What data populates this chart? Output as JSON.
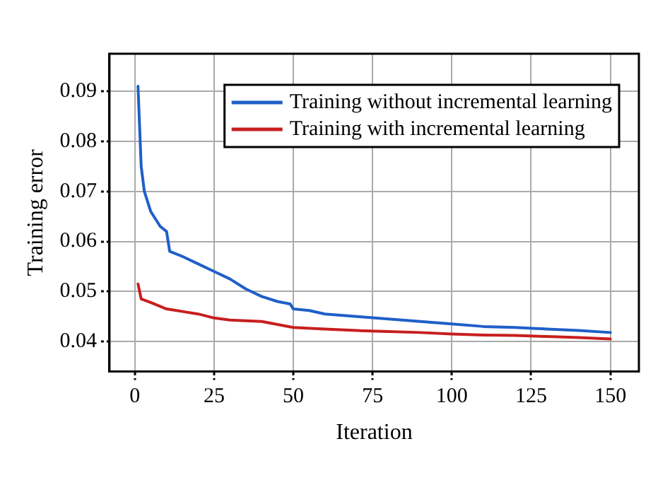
{
  "chart_data": {
    "type": "line",
    "xlabel": "Iteration",
    "ylabel": "Training error",
    "xlim": [
      -8,
      159
    ],
    "xticks": [
      0,
      25,
      50,
      75,
      100,
      125,
      150
    ],
    "ylim": [
      0.034,
      0.0975
    ],
    "yticks": [
      0.04,
      0.05,
      0.06,
      0.07,
      0.08,
      0.09
    ],
    "grid": true,
    "legend": "top right",
    "marker": "none",
    "line_style": "solid",
    "series": [
      {
        "name": "Training without incremental learning",
        "color": "#1f5fc8",
        "x": [
          1,
          2,
          3,
          5,
          8,
          10,
          11,
          15,
          20,
          25,
          30,
          35,
          40,
          45,
          49,
          50,
          55,
          60,
          70,
          80,
          90,
          100,
          110,
          120,
          130,
          140,
          150
        ],
        "values": [
          0.091,
          0.075,
          0.07,
          0.066,
          0.063,
          0.062,
          0.058,
          0.057,
          0.0555,
          0.054,
          0.0525,
          0.0505,
          0.049,
          0.048,
          0.0475,
          0.0465,
          0.0462,
          0.0455,
          0.045,
          0.0445,
          0.044,
          0.0435,
          0.043,
          0.0428,
          0.0425,
          0.0422,
          0.0418
        ]
      },
      {
        "name": "Training with incremental learning",
        "color": "#c81e1e",
        "x": [
          1,
          2,
          5,
          10,
          15,
          20,
          25,
          30,
          40,
          50,
          60,
          70,
          80,
          90,
          100,
          110,
          120,
          130,
          140,
          150
        ],
        "values": [
          0.0515,
          0.0485,
          0.0478,
          0.0465,
          0.046,
          0.0455,
          0.0447,
          0.0443,
          0.044,
          0.0428,
          0.0425,
          0.0422,
          0.042,
          0.0418,
          0.0415,
          0.0413,
          0.0412,
          0.041,
          0.0408,
          0.0405
        ]
      }
    ]
  }
}
